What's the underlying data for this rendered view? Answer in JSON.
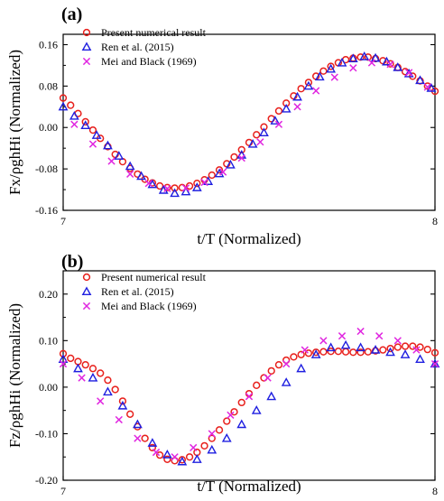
{
  "chart_data": [
    {
      "panel": "(a)",
      "type": "scatter",
      "xlabel": "t/T (Normalized)",
      "ylabel": "Fx/ρghHi (Normalized)",
      "xlim": [
        7,
        8
      ],
      "ylim": [
        -0.16,
        0.18
      ],
      "x_ticks": [
        7,
        8
      ],
      "y_ticks": [
        -0.16,
        -0.08,
        0.0,
        0.08,
        0.16
      ],
      "y_tick_labels": [
        "-0.16",
        "-0.08",
        "0.00",
        "0.08",
        "0.16"
      ],
      "grid": false,
      "legend_position": "top-left",
      "series": [
        {
          "name": "Present numerical result",
          "marker": "circle",
          "color": "#e8201c",
          "x": [
            7.0,
            7.02,
            7.04,
            7.06,
            7.08,
            7.1,
            7.12,
            7.14,
            7.16,
            7.18,
            7.2,
            7.22,
            7.24,
            7.26,
            7.28,
            7.3,
            7.32,
            7.34,
            7.36,
            7.38,
            7.4,
            7.42,
            7.44,
            7.46,
            7.48,
            7.5,
            7.52,
            7.54,
            7.56,
            7.58,
            7.6,
            7.62,
            7.64,
            7.66,
            7.68,
            7.7,
            7.72,
            7.74,
            7.76,
            7.78,
            7.8,
            7.82,
            7.84,
            7.86,
            7.88,
            7.9,
            7.92,
            7.94,
            7.96,
            7.98,
            8.0
          ],
          "y": [
            0.057,
            0.043,
            0.027,
            0.011,
            -0.005,
            -0.021,
            -0.037,
            -0.052,
            -0.066,
            -0.079,
            -0.09,
            -0.1,
            -0.107,
            -0.113,
            -0.116,
            -0.117,
            -0.116,
            -0.113,
            -0.108,
            -0.101,
            -0.092,
            -0.082,
            -0.07,
            -0.057,
            -0.043,
            -0.029,
            -0.014,
            0.001,
            0.017,
            0.032,
            0.047,
            0.061,
            0.075,
            0.087,
            0.099,
            0.109,
            0.118,
            0.125,
            0.131,
            0.134,
            0.136,
            0.136,
            0.133,
            0.129,
            0.123,
            0.116,
            0.108,
            0.099,
            0.09,
            0.08,
            0.07
          ]
        },
        {
          "name": "Ren et al. (2015)",
          "marker": "triangle",
          "color": "#1f1fe0",
          "x": [
            7.0,
            7.03,
            7.06,
            7.09,
            7.12,
            7.15,
            7.18,
            7.21,
            7.24,
            7.27,
            7.3,
            7.33,
            7.36,
            7.39,
            7.42,
            7.45,
            7.48,
            7.51,
            7.54,
            7.57,
            7.6,
            7.63,
            7.66,
            7.69,
            7.72,
            7.75,
            7.78,
            7.81,
            7.84,
            7.87,
            7.9,
            7.93,
            7.96,
            7.99
          ],
          "y": [
            0.04,
            0.022,
            0.004,
            -0.015,
            -0.035,
            -0.055,
            -0.075,
            -0.094,
            -0.11,
            -0.121,
            -0.127,
            -0.124,
            -0.116,
            -0.104,
            -0.089,
            -0.072,
            -0.053,
            -0.032,
            -0.01,
            0.013,
            0.036,
            0.059,
            0.08,
            0.098,
            0.113,
            0.125,
            0.133,
            0.137,
            0.134,
            0.127,
            0.116,
            0.104,
            0.091,
            0.076
          ]
        },
        {
          "name": "Mei and Black (1969)",
          "marker": "x",
          "color": "#e026e0",
          "x": [
            7.03,
            7.08,
            7.13,
            7.18,
            7.23,
            7.28,
            7.33,
            7.38,
            7.43,
            7.48,
            7.53,
            7.58,
            7.63,
            7.68,
            7.73,
            7.78,
            7.83,
            7.88,
            7.93,
            7.98
          ],
          "y": [
            0.006,
            -0.032,
            -0.065,
            -0.09,
            -0.108,
            -0.118,
            -0.117,
            -0.106,
            -0.086,
            -0.059,
            -0.028,
            0.006,
            0.04,
            0.071,
            0.097,
            0.115,
            0.125,
            0.122,
            0.106,
            0.078
          ]
        }
      ]
    },
    {
      "panel": "(b)",
      "type": "scatter",
      "xlabel": "t/T (Normalized)",
      "ylabel": "Fz/ρghHi (Normalized)",
      "xlim": [
        7,
        8
      ],
      "ylim": [
        -0.2,
        0.25
      ],
      "x_ticks": [
        7,
        8
      ],
      "y_ticks": [
        -0.2,
        -0.1,
        0.0,
        0.1,
        0.2
      ],
      "y_tick_labels": [
        "-0.20",
        "-0.10",
        "0.00",
        "0.10",
        "0.20"
      ],
      "grid": false,
      "legend_position": "top-left",
      "series": [
        {
          "name": "Present numerical result",
          "marker": "circle",
          "color": "#e8201c",
          "x": [
            7.0,
            7.02,
            7.04,
            7.06,
            7.08,
            7.1,
            7.12,
            7.14,
            7.16,
            7.18,
            7.2,
            7.22,
            7.24,
            7.26,
            7.28,
            7.3,
            7.32,
            7.34,
            7.36,
            7.38,
            7.4,
            7.42,
            7.44,
            7.46,
            7.48,
            7.5,
            7.52,
            7.54,
            7.56,
            7.58,
            7.6,
            7.62,
            7.64,
            7.66,
            7.68,
            7.7,
            7.72,
            7.74,
            7.76,
            7.78,
            7.8,
            7.82,
            7.84,
            7.86,
            7.88,
            7.9,
            7.92,
            7.94,
            7.96,
            7.98,
            8.0
          ],
          "y": [
            0.072,
            0.062,
            0.055,
            0.048,
            0.04,
            0.03,
            0.015,
            -0.005,
            -0.03,
            -0.058,
            -0.085,
            -0.11,
            -0.13,
            -0.146,
            -0.155,
            -0.158,
            -0.156,
            -0.15,
            -0.14,
            -0.126,
            -0.11,
            -0.092,
            -0.073,
            -0.053,
            -0.033,
            -0.014,
            0.004,
            0.02,
            0.035,
            0.048,
            0.058,
            0.065,
            0.07,
            0.073,
            0.075,
            0.076,
            0.077,
            0.077,
            0.076,
            0.075,
            0.075,
            0.076,
            0.078,
            0.08,
            0.083,
            0.086,
            0.088,
            0.088,
            0.086,
            0.081,
            0.074
          ]
        },
        {
          "name": "Ren et al. (2015)",
          "marker": "triangle",
          "color": "#1f1fe0",
          "x": [
            7.0,
            7.04,
            7.08,
            7.12,
            7.16,
            7.2,
            7.24,
            7.28,
            7.32,
            7.36,
            7.4,
            7.44,
            7.48,
            7.52,
            7.56,
            7.6,
            7.64,
            7.68,
            7.72,
            7.76,
            7.8,
            7.84,
            7.88,
            7.92,
            7.96,
            8.0
          ],
          "y": [
            0.06,
            0.04,
            0.02,
            -0.01,
            -0.04,
            -0.08,
            -0.12,
            -0.145,
            -0.16,
            -0.155,
            -0.135,
            -0.11,
            -0.08,
            -0.05,
            -0.02,
            0.01,
            0.04,
            0.07,
            0.085,
            0.09,
            0.085,
            0.08,
            0.075,
            0.07,
            0.06,
            0.05
          ]
        },
        {
          "name": "Mei and Black (1969)",
          "marker": "x",
          "color": "#e026e0",
          "x": [
            7.0,
            7.05,
            7.1,
            7.15,
            7.2,
            7.25,
            7.3,
            7.35,
            7.4,
            7.45,
            7.5,
            7.55,
            7.6,
            7.65,
            7.7,
            7.75,
            7.8,
            7.85,
            7.9,
            7.95,
            8.0
          ],
          "y": [
            0.05,
            0.02,
            -0.03,
            -0.07,
            -0.11,
            -0.14,
            -0.15,
            -0.13,
            -0.1,
            -0.06,
            -0.02,
            0.02,
            0.05,
            0.08,
            0.1,
            0.11,
            0.12,
            0.11,
            0.1,
            0.08,
            0.05
          ]
        }
      ]
    }
  ]
}
